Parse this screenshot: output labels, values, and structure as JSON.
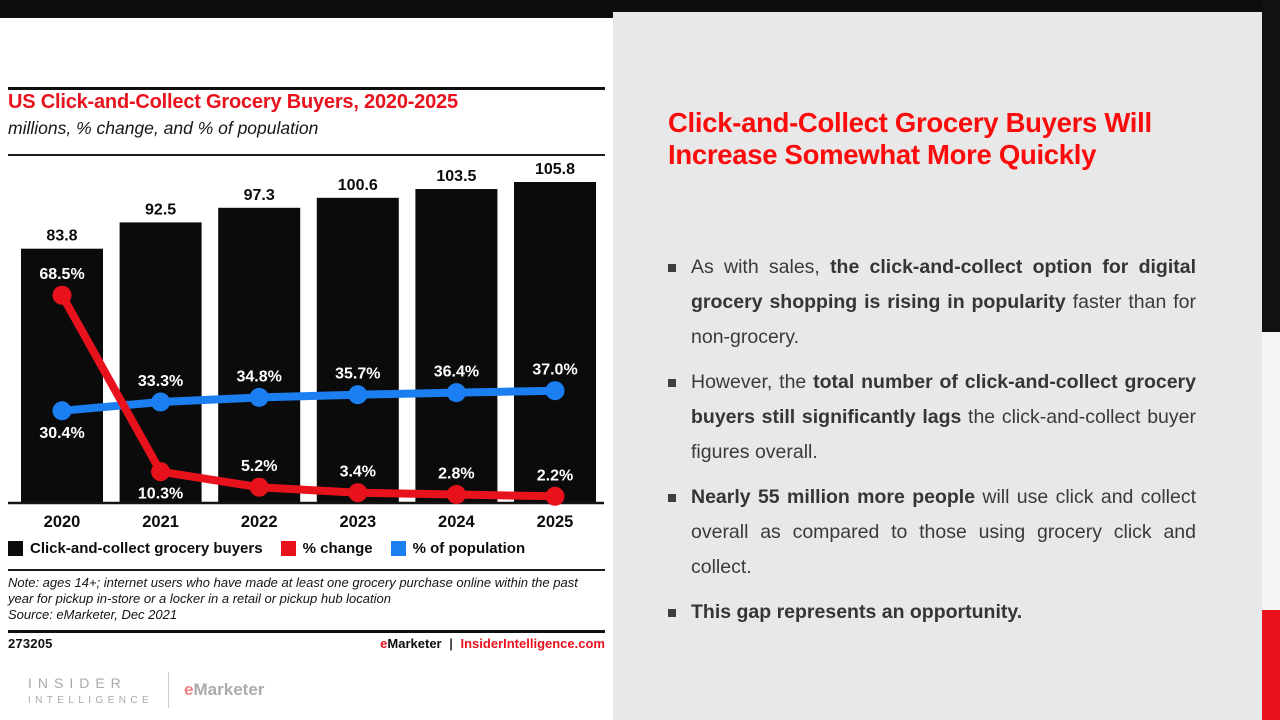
{
  "chart_panel": {
    "note": "Note: ages 14+; internet users who have made at least one grocery purchase online within the past year for pickup in-store or a locker in a retail or pickup hub location",
    "source": "Source: eMarketer, Dec 2021",
    "footer": {
      "id": "273205",
      "brand_e": "e",
      "brand_rest": "Marketer",
      "separator": "|",
      "site": "InsiderIntelligence.com"
    }
  },
  "chart_data": {
    "type": "combo",
    "title": "US Click-and-Collect Grocery Buyers, 2020-2025",
    "subtitle": "millions, % change, and % of population",
    "categories": [
      "2020",
      "2021",
      "2022",
      "2023",
      "2024",
      "2025"
    ],
    "series": [
      {
        "name": "Click-and-collect grocery buyers",
        "type": "bar",
        "unit": "millions",
        "color": "#0b0b0b",
        "values": [
          83.8,
          92.5,
          97.3,
          100.6,
          103.5,
          105.8
        ]
      },
      {
        "name": "% change",
        "type": "line",
        "unit": "%",
        "color": "#e8121d",
        "values": [
          68.5,
          10.3,
          5.2,
          3.4,
          2.8,
          2.2
        ],
        "label_side": [
          "above",
          "below",
          "above",
          "above",
          "above",
          "above"
        ]
      },
      {
        "name": "% of population",
        "type": "line",
        "unit": "%",
        "color": "#1b7ff2",
        "values": [
          30.4,
          33.3,
          34.8,
          35.7,
          36.4,
          37.0
        ],
        "label_side": [
          "below",
          "above",
          "above",
          "above",
          "above",
          "above"
        ]
      }
    ],
    "ylim": [
      0,
      113
    ],
    "grid": false,
    "legend_position": "bottom"
  },
  "logo": {
    "line1": "INSIDER",
    "line2": "INTELLIGENCE",
    "brand_e": "e",
    "brand_rest": "Marketer"
  },
  "right_panel": {
    "heading": "Click-and-Collect Grocery Buyers Will Increase Somewhat More Quickly",
    "bullets": [
      {
        "segments": [
          {
            "text": "As with sales, ",
            "bold": false
          },
          {
            "text": "the click-and-collect option for digital grocery shopping is rising in popularity",
            "bold": true
          },
          {
            "text": " faster than for non-grocery.",
            "bold": false
          }
        ]
      },
      {
        "segments": [
          {
            "text": "However, the ",
            "bold": false
          },
          {
            "text": "total number of click-and-collect grocery buyers still significantly lags",
            "bold": true
          },
          {
            "text": " the click-and-collect buyer figures overall.",
            "bold": false
          }
        ]
      },
      {
        "segments": [
          {
            "text": "Nearly 55 million more people",
            "bold": true
          },
          {
            "text": " will use click and collect overall as compared to those using grocery click and collect.",
            "bold": false
          }
        ]
      },
      {
        "segments": [
          {
            "text": "This gap represents an opportunity.",
            "bold": true
          }
        ]
      }
    ]
  },
  "colors": {
    "accent_red": "#e8121d",
    "heading_red": "#fb0b0b",
    "line_blue": "#1b7ff2",
    "bar_black": "#0b0b0b",
    "panel_gray": "#e9e8e8",
    "strip_light": "#f4f4f4"
  }
}
